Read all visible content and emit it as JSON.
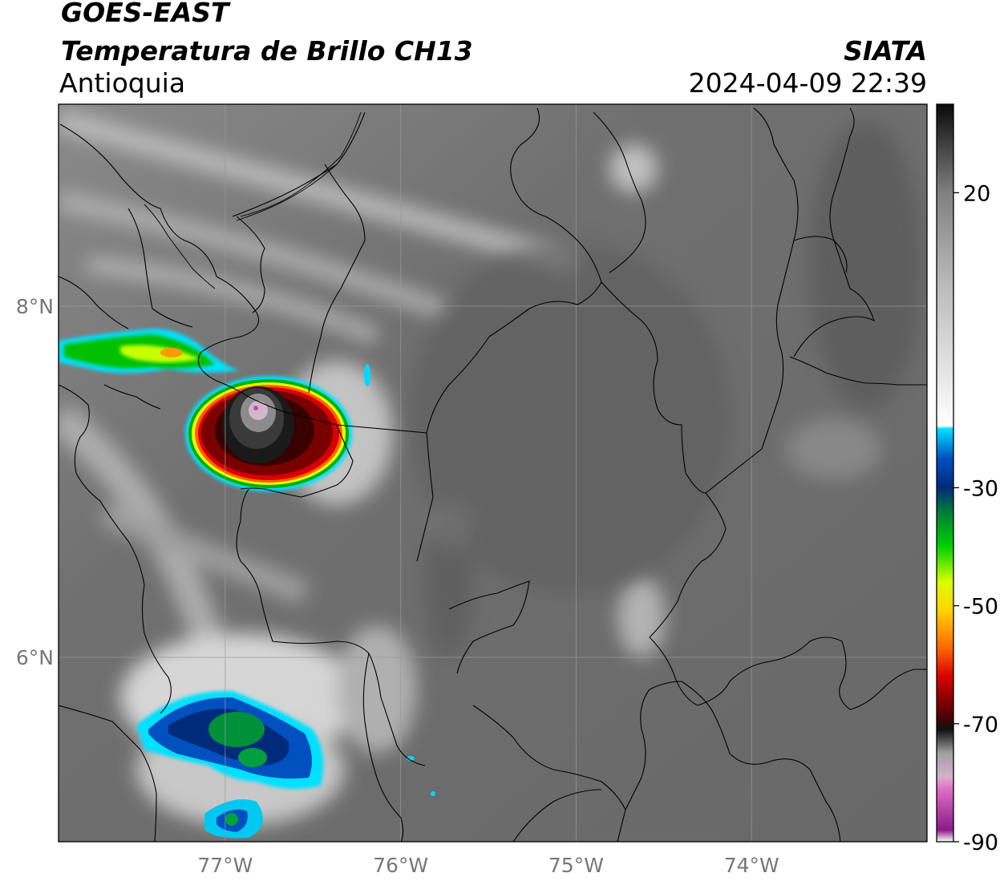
{
  "header": {
    "satellite": "GOES-EAST",
    "product": "Temperatura de Brillo CH13",
    "region": "Antioquia",
    "institution": "SIATA",
    "datetime": "2024-04-09 22:39"
  },
  "map": {
    "lon_range": [
      -77.95,
      -73.0
    ],
    "lat_range": [
      4.95,
      9.15
    ],
    "lon_ticks": [
      {
        "value": -77,
        "label": "77°W"
      },
      {
        "value": -76,
        "label": "76°W"
      },
      {
        "value": -75,
        "label": "75°W"
      },
      {
        "value": -74,
        "label": "74°W"
      }
    ],
    "lat_ticks": [
      {
        "value": 8,
        "label": "8°N"
      },
      {
        "value": 6,
        "label": "6°N"
      }
    ],
    "gridlines": true,
    "colors": {
      "background_gray": "#6b6b6b",
      "border_line": "#000000"
    }
  },
  "colorbar": {
    "vmin": -90,
    "vmax": 35,
    "ticks": [
      {
        "value": 20,
        "label": "20"
      },
      {
        "value": -30,
        "label": "-30"
      },
      {
        "value": -50,
        "label": "-50"
      },
      {
        "value": -70,
        "label": "-70"
      },
      {
        "value": -90,
        "label": "-90"
      }
    ],
    "stops": [
      {
        "value": -90,
        "color": "#ffffff"
      },
      {
        "value": -88,
        "color": "#8a1a8a"
      },
      {
        "value": -81,
        "color": "#e070c8"
      },
      {
        "value": -79,
        "color": "#d8b0c8"
      },
      {
        "value": -75,
        "color": "#a0a0a0"
      },
      {
        "value": -71,
        "color": "#101010"
      },
      {
        "value": -68,
        "color": "#600000"
      },
      {
        "value": -62,
        "color": "#d80000"
      },
      {
        "value": -57,
        "color": "#ff6a00"
      },
      {
        "value": -51,
        "color": "#ffd000"
      },
      {
        "value": -46,
        "color": "#d8ff00"
      },
      {
        "value": -40,
        "color": "#00d000"
      },
      {
        "value": -34,
        "color": "#007a3a"
      },
      {
        "value": -30,
        "color": "#002a7a"
      },
      {
        "value": -25,
        "color": "#0050c0"
      },
      {
        "value": -20,
        "color": "#00e0ff"
      },
      {
        "value": -19.5,
        "color": "#ffffff"
      },
      {
        "value": 5,
        "color": "#b8b8b8"
      },
      {
        "value": 20,
        "color": "#808080"
      },
      {
        "value": 35,
        "color": "#0a0a0a"
      }
    ]
  }
}
